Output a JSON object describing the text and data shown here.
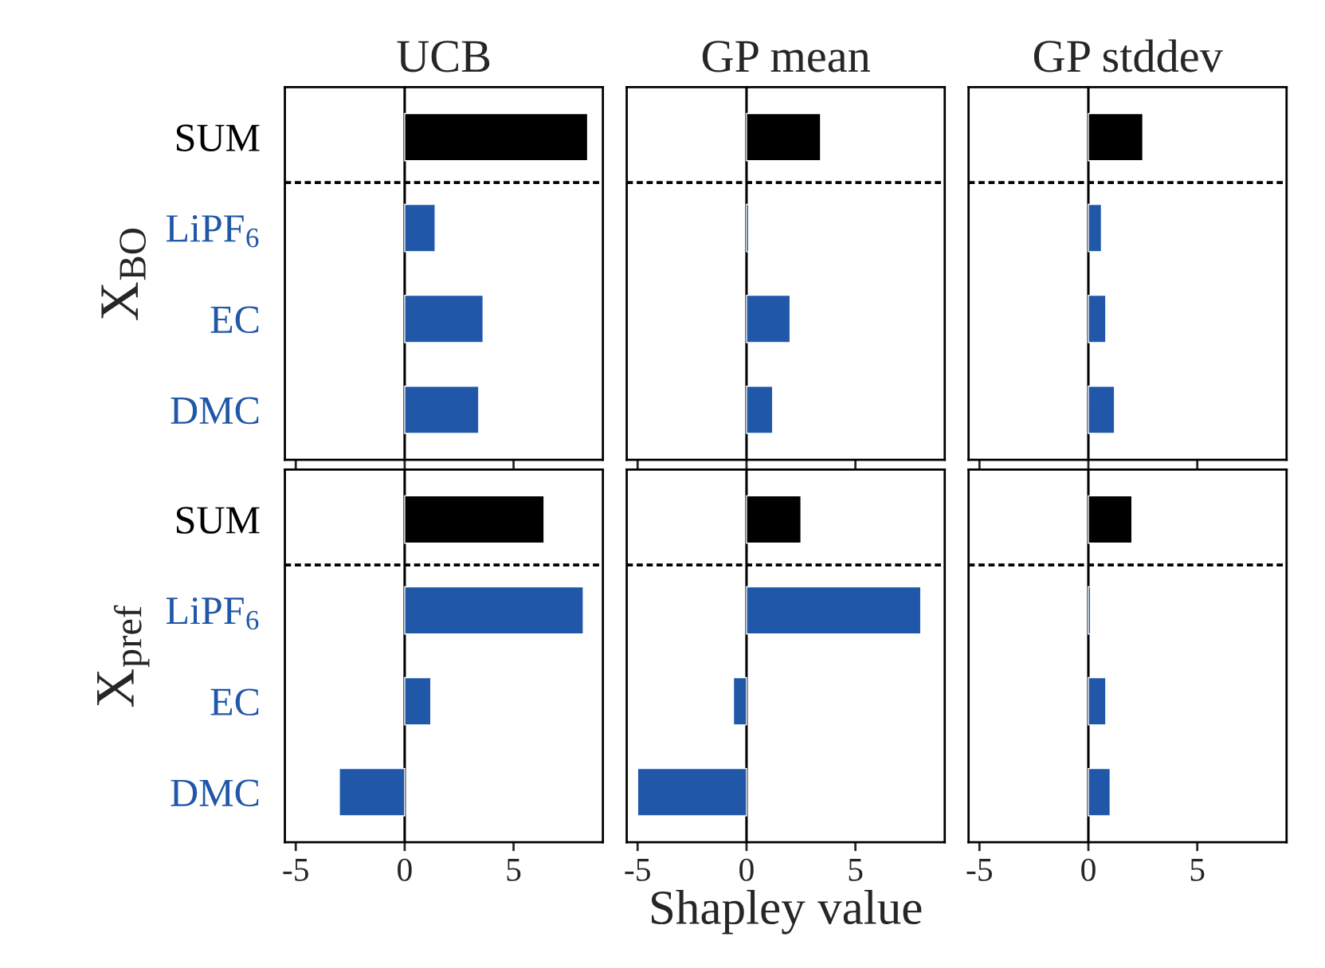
{
  "chart_data": [
    {
      "type": "bar",
      "orientation": "horizontal",
      "title": "UCB",
      "ylabel": "X$_{BO}$",
      "categories": [
        "SUM",
        "LiPF$_{6}$",
        "EC",
        "DMC"
      ],
      "values": [
        8.4,
        1.4,
        3.6,
        3.4
      ],
      "colors": [
        "#000000",
        "#2057a8",
        "#2057a8",
        "#2057a8"
      ],
      "xlim": [
        -5.5,
        9.1
      ],
      "xticks": [
        -5,
        0,
        5
      ],
      "tick_labels": "y",
      "ref_lines": [
        {
          "axis": "x",
          "value": 0,
          "color": "#000000",
          "line_style": "solid"
        }
      ],
      "grid": false,
      "legend": false
    },
    {
      "type": "bar",
      "orientation": "horizontal",
      "title": "GP mean",
      "categories": [
        null,
        null,
        null,
        null
      ],
      "values": [
        3.4,
        0.1,
        2.0,
        1.2
      ],
      "colors": [
        "#000000",
        "#2057a8",
        "#2057a8",
        "#2057a8"
      ],
      "xlim": [
        -5.5,
        9.1
      ],
      "xticks": [
        -5,
        0,
        5
      ],
      "tick_labels": false,
      "ref_lines": [
        {
          "axis": "x",
          "value": 0,
          "color": "#000000",
          "line_style": "solid"
        }
      ],
      "grid": false,
      "legend": false
    },
    {
      "type": "bar",
      "orientation": "horizontal",
      "title": "GP stddev",
      "categories": [
        null,
        null,
        null,
        null
      ],
      "values": [
        2.5,
        0.6,
        0.8,
        1.2
      ],
      "colors": [
        "#000000",
        "#2057a8",
        "#2057a8",
        "#2057a8"
      ],
      "xlim": [
        -5.5,
        9.1
      ],
      "xticks": [
        -5,
        0,
        5
      ],
      "tick_labels": false,
      "ref_lines": [
        {
          "axis": "x",
          "value": 0,
          "color": "#000000",
          "line_style": "solid"
        }
      ],
      "grid": false,
      "legend": false
    },
    {
      "type": "bar",
      "orientation": "horizontal",
      "ylabel": "X$_{pref}$",
      "categories": [
        "SUM",
        "LiPF$_{6}$",
        "EC",
        "DMC"
      ],
      "values": [
        6.4,
        8.2,
        1.2,
        -3.0
      ],
      "colors": [
        "#000000",
        "#2057a8",
        "#2057a8",
        "#2057a8"
      ],
      "xlim": [
        -5.5,
        9.1
      ],
      "xticks": [
        -5,
        0,
        5
      ],
      "ref_lines": [
        {
          "axis": "x",
          "value": 0,
          "color": "#000000",
          "line_style": "solid"
        }
      ],
      "grid": false,
      "legend": false
    },
    {
      "type": "bar",
      "orientation": "horizontal",
      "xlabel": "Shapley value",
      "categories": [
        null,
        null,
        null,
        null
      ],
      "values": [
        2.5,
        8.0,
        -0.6,
        -5.0
      ],
      "colors": [
        "#000000",
        "#2057a8",
        "#2057a8",
        "#2057a8"
      ],
      "xlim": [
        -5.5,
        9.1
      ],
      "xticks": [
        -5,
        0,
        5
      ],
      "tick_labels": "x",
      "ref_lines": [
        {
          "axis": "x",
          "value": 0,
          "color": "#000000",
          "line_style": "solid"
        }
      ],
      "grid": false,
      "legend": false
    },
    {
      "type": "bar",
      "orientation": "horizontal",
      "categories": [
        null,
        null,
        null,
        null
      ],
      "values": [
        2.0,
        0.1,
        0.8,
        1.0
      ],
      "colors": [
        "#000000",
        "#2057a8",
        "#2057a8",
        "#2057a8"
      ],
      "xlim": [
        -5.5,
        9.1
      ],
      "xticks": [
        -5,
        0,
        5
      ],
      "tick_labels": "x",
      "ref_lines": [
        {
          "axis": "x",
          "value": 0,
          "color": "#000000",
          "line_style": "solid"
        }
      ],
      "grid": false,
      "legend": false
    }
  ]
}
